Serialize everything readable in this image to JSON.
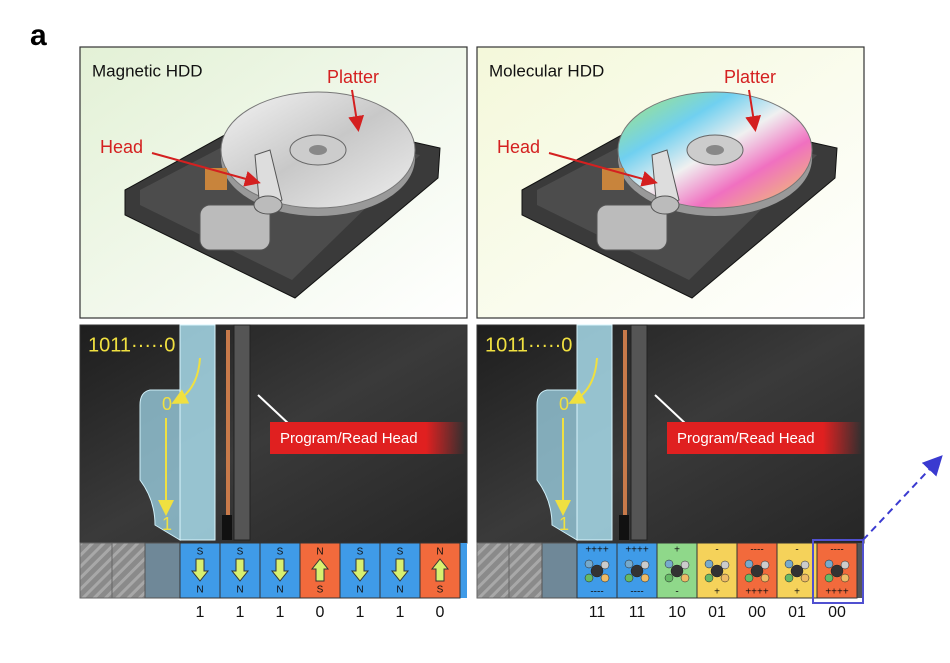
{
  "panel_label": "a",
  "panels": [
    {
      "title": "Magnetic HDD",
      "platter_label": "Platter",
      "head_label": "Head",
      "sequence": "1011·····0",
      "bit_in": "0",
      "bit_out": "1",
      "head_text": "Program/Read Head",
      "kind": "magnetic",
      "cells": [
        {
          "top": "S",
          "bottom": "N",
          "bit": "1",
          "color": "#3f9be8"
        },
        {
          "top": "S",
          "bottom": "N",
          "bit": "1",
          "color": "#3f9be8"
        },
        {
          "top": "S",
          "bottom": "N",
          "bit": "1",
          "color": "#3f9be8"
        },
        {
          "top": "N",
          "bottom": "S",
          "bit": "0",
          "color": "#f26a3c"
        },
        {
          "top": "S",
          "bottom": "N",
          "bit": "1",
          "color": "#3f9be8"
        },
        {
          "top": "S",
          "bottom": "N",
          "bit": "1",
          "color": "#3f9be8"
        },
        {
          "top": "N",
          "bottom": "S",
          "bit": "0",
          "color": "#f26a3c"
        }
      ]
    },
    {
      "title": "Molecular HDD",
      "platter_label": "Platter",
      "head_label": "Head",
      "sequence": "1011·····0",
      "bit_in": "0",
      "bit_out": "1",
      "head_text": "Program/Read Head",
      "kind": "molecular",
      "cells": [
        {
          "top": "++++",
          "bottom": "----",
          "bit": "11",
          "color": "#3f9be8"
        },
        {
          "top": "++++",
          "bottom": "----",
          "bit": "11",
          "color": "#3f9be8"
        },
        {
          "top": "+",
          "bottom": "-",
          "bit": "10",
          "color": "#8fd88a"
        },
        {
          "top": "-",
          "bottom": "+",
          "bit": "01",
          "color": "#f5d25a"
        },
        {
          "top": "----",
          "bottom": "++++",
          "bit": "00",
          "color": "#f26a3c"
        },
        {
          "top": "-",
          "bottom": "+",
          "bit": "01",
          "color": "#f5d25a"
        },
        {
          "top": "----",
          "bottom": "++++",
          "bit": "00",
          "color": "#f26a3c"
        }
      ]
    }
  ]
}
